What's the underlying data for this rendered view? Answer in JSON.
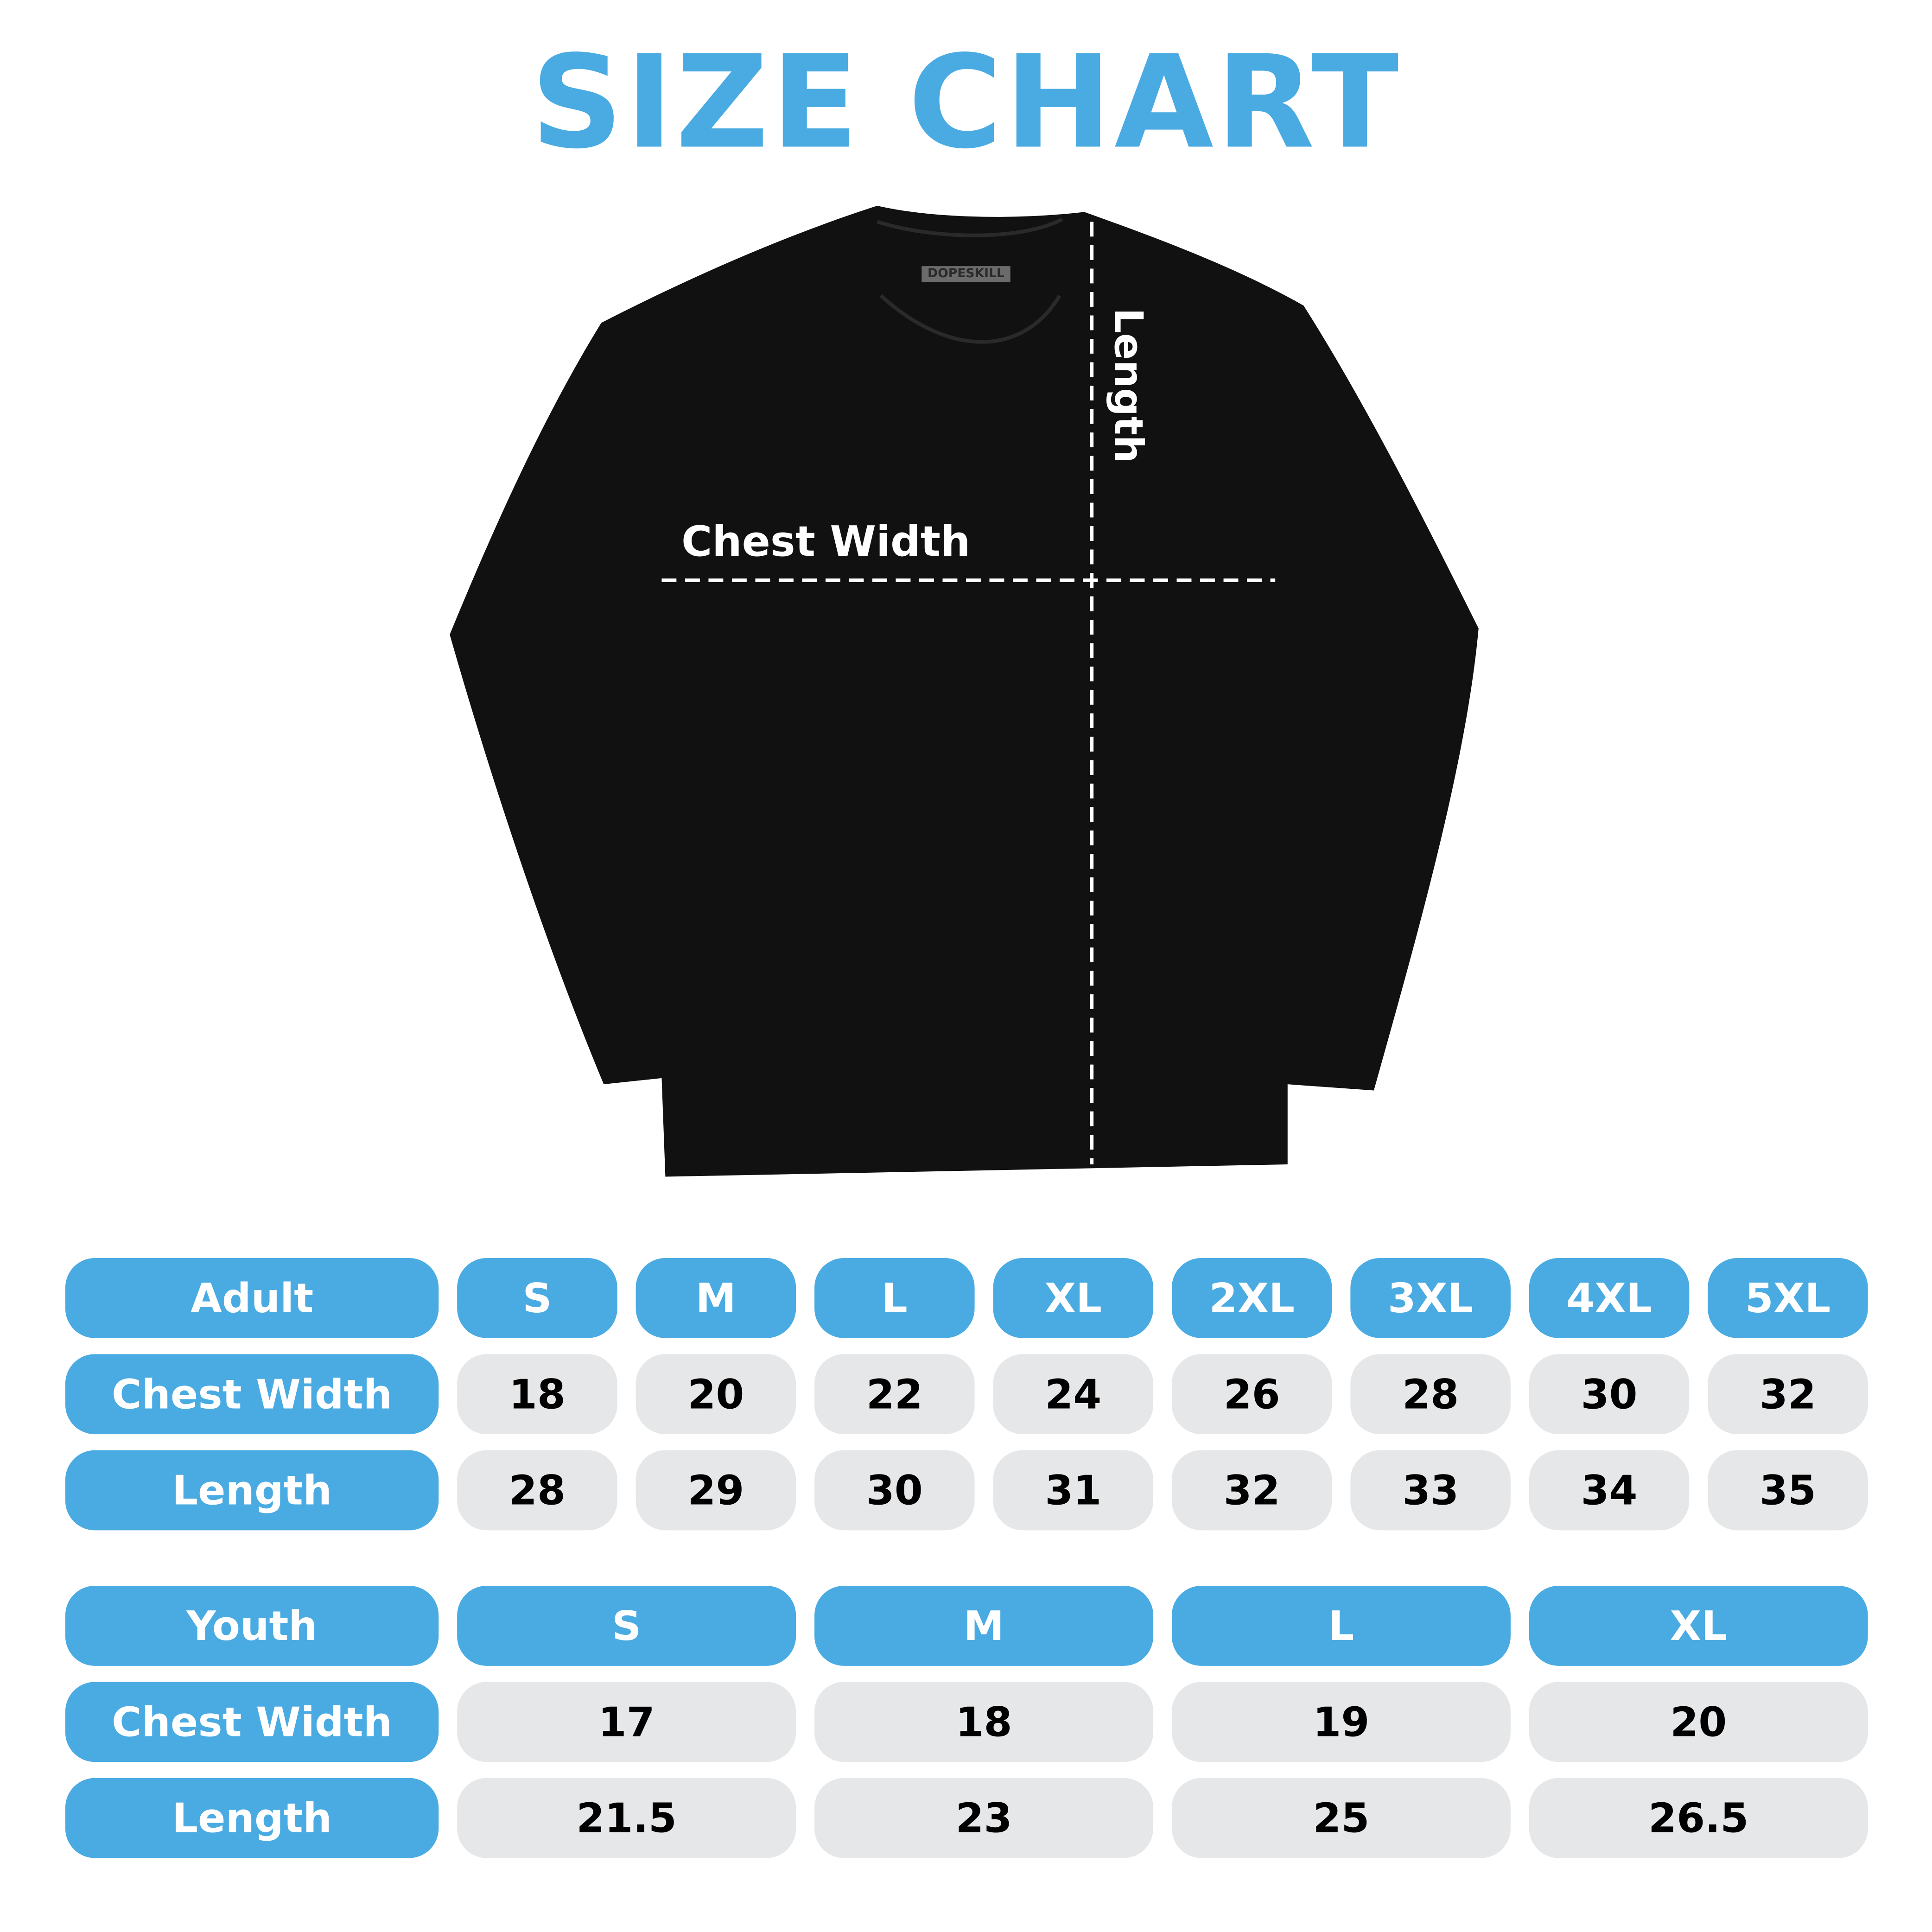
{
  "title": "SIZE CHART",
  "shirt": {
    "brand_tag": "DOPESKILL",
    "chest_label": "Chest Width",
    "length_label": "Length"
  },
  "colors": {
    "accent": "#4aabe2",
    "cell_bg": "#e6e7e9",
    "shirt": "#111111"
  },
  "adult": {
    "header": "Adult",
    "sizes": [
      "S",
      "M",
      "L",
      "XL",
      "2XL",
      "3XL",
      "4XL",
      "5XL"
    ],
    "rows": [
      {
        "label": "Chest Width",
        "values": [
          "18",
          "20",
          "22",
          "24",
          "26",
          "28",
          "30",
          "32"
        ]
      },
      {
        "label": "Length",
        "values": [
          "28",
          "29",
          "30",
          "31",
          "32",
          "33",
          "34",
          "35"
        ]
      }
    ]
  },
  "youth": {
    "header": "Youth",
    "sizes": [
      "S",
      "M",
      "L",
      "XL"
    ],
    "rows": [
      {
        "label": "Chest Width",
        "values": [
          "17",
          "18",
          "19",
          "20"
        ]
      },
      {
        "label": "Length",
        "values": [
          "21.5",
          "23",
          "25",
          "26.5"
        ]
      }
    ]
  }
}
